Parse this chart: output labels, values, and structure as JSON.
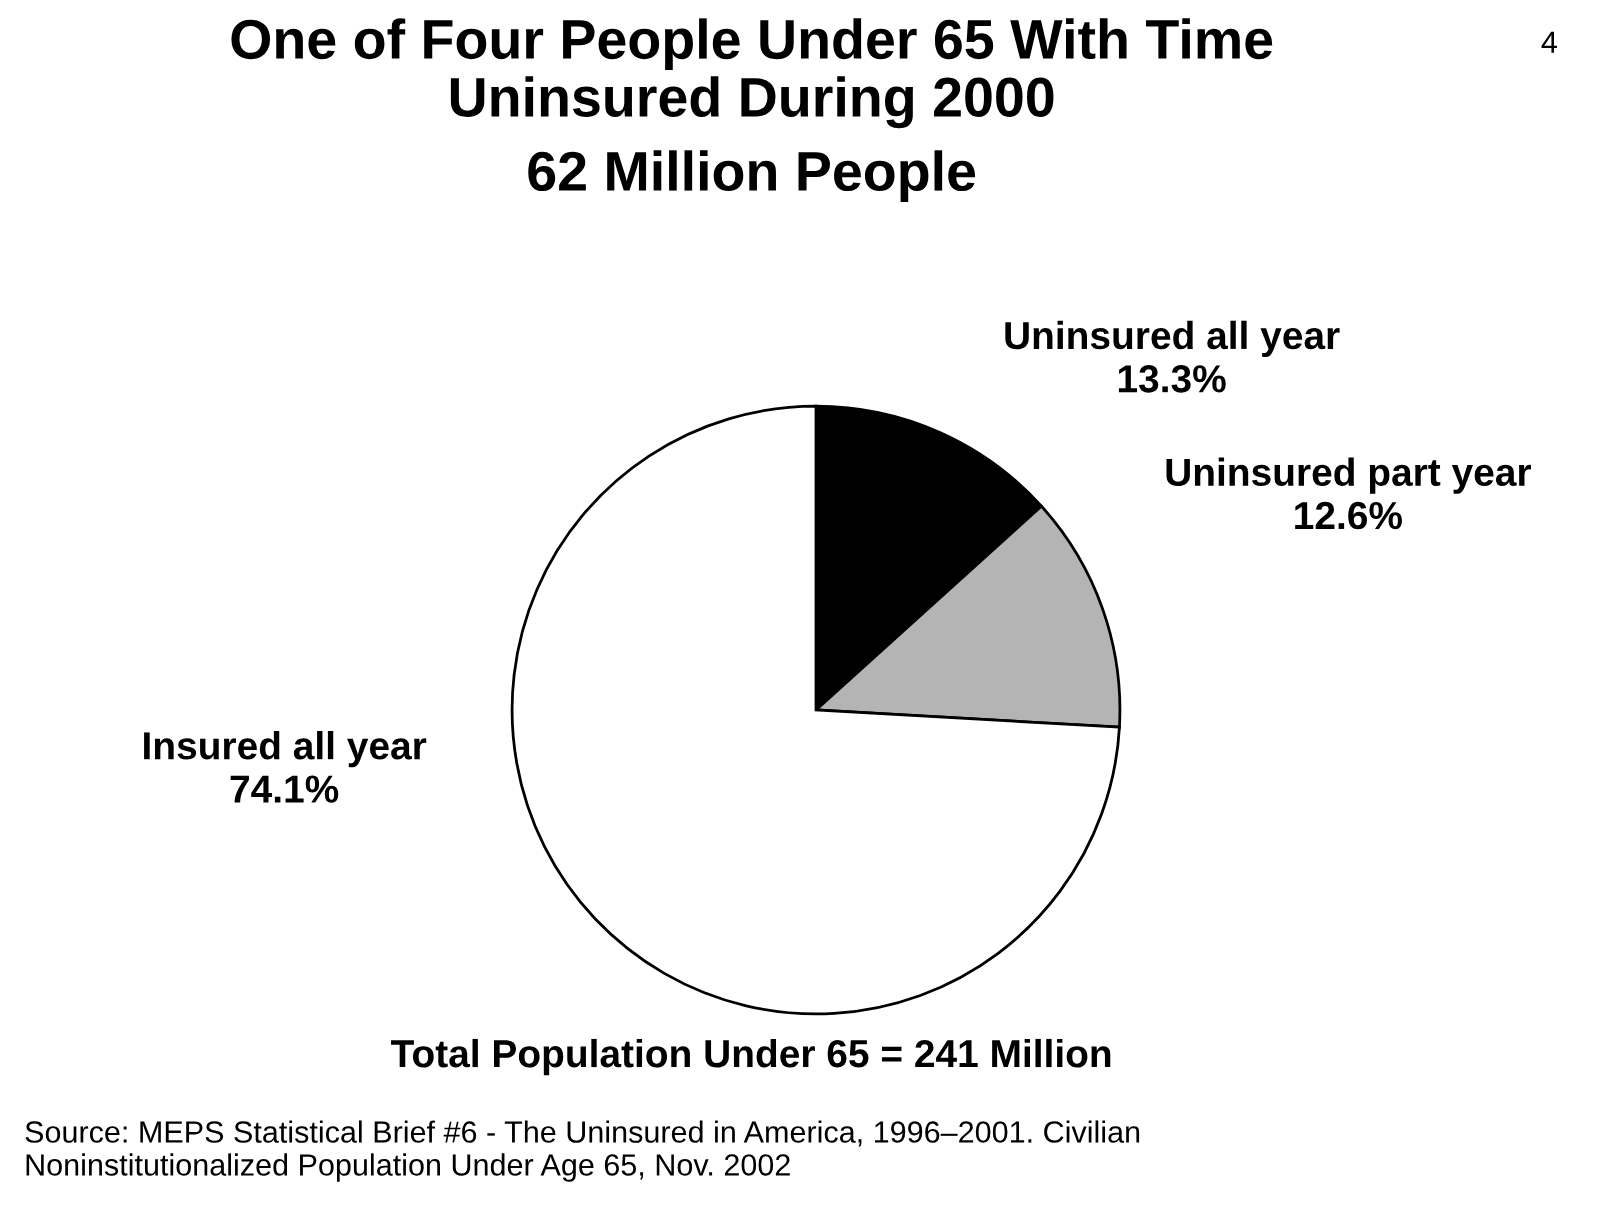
{
  "chart_data": {
    "type": "pie",
    "title": "One of Four People Under 65 With Time\nUninsured During 2000",
    "subtitle": "62 Million People",
    "categories": [
      "Uninsured all year",
      "Uninsured part year",
      "Insured all year"
    ],
    "values": [
      13.3,
      12.6,
      74.1
    ],
    "colors": [
      "#000000",
      "#b4b4b4",
      "#ffffff"
    ],
    "value_labels": [
      "13.3%",
      "12.6%",
      "74.1%"
    ],
    "annotations": [
      "4",
      "Total Population Under 65 = 241 Million",
      "Source: MEPS Statistical Brief #6 - The Uninsured in America, 1996–2001. Civilian\nNoninstitutionalized Population Under Age 65, Nov. 2002"
    ]
  }
}
